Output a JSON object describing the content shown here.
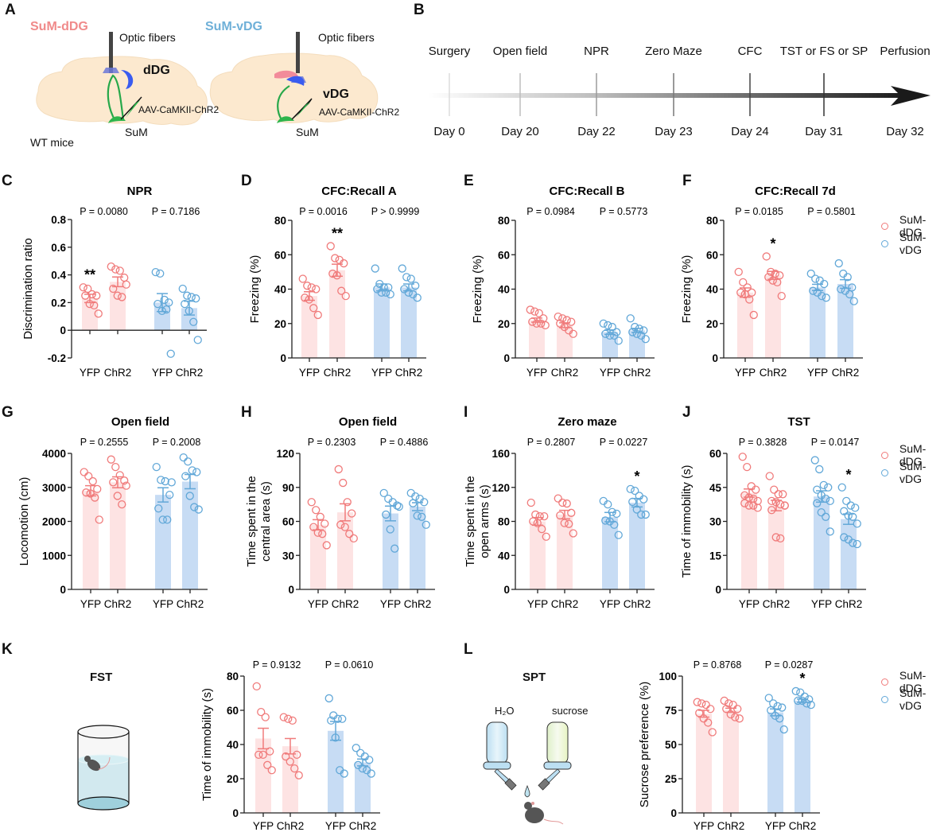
{
  "colors": {
    "dDG_point": "#f07b7b",
    "dDG_bar": "#fde3e3",
    "vDG_point": "#62a8d8",
    "vDG_bar": "#c7dcf4",
    "axis": "#222222",
    "timeline_dark": "#1a1a1a"
  },
  "panel_letters": [
    "A",
    "B",
    "C",
    "D",
    "E",
    "F",
    "G",
    "H",
    "I",
    "J",
    "K",
    "L"
  ],
  "panelA": {
    "group1_label": "SuM-dDG",
    "group2_label": "SuM-vDG",
    "optic1": "Optic fibers",
    "optic2": "Optic fibers",
    "region1": "dDG",
    "region2": "vDG",
    "virus1": "AAV-CaMKII-ChR2",
    "virus2": "AAV-CaMKII-ChR2",
    "sum1": "SuM",
    "sum2": "SuM",
    "mice": "WT mice"
  },
  "panelB": {
    "events": [
      {
        "label": "Surgery",
        "day": "Day 0"
      },
      {
        "label": "Open field",
        "day": "Day 20"
      },
      {
        "label": "NPR",
        "day": "Day 22"
      },
      {
        "label": "Zero Maze",
        "day": "Day 23"
      },
      {
        "label": "CFC",
        "day": "Day 24"
      },
      {
        "label": "TST or FS or SP",
        "day": "Day 31"
      },
      {
        "label": "Perfusion",
        "day": "Day 32"
      }
    ]
  },
  "legend": {
    "items": [
      {
        "label": "SuM-dDG",
        "icon": "open-circle-red"
      },
      {
        "label": "SuM-vDG",
        "icon": "open-circle-blue"
      }
    ]
  },
  "panelK": {
    "title": "FST",
    "illustration": "cylinder-with-swimming-mouse"
  },
  "panelL": {
    "title": "SPT",
    "bottle1": "H₂O",
    "bottle2": "sucrose",
    "illustration": "two-bottles-and-mouse"
  },
  "chart_data": [
    {
      "id": "C",
      "type": "bar",
      "title": "NPR",
      "ylabel": "Discrimination ratio",
      "ylim": [
        -0.2,
        0.8
      ],
      "yticks": [
        -0.2,
        0,
        0.2,
        0.4,
        0.6,
        0.8
      ],
      "ytick_labels": [
        "-0.2",
        "0",
        "0.2",
        "0.4",
        "0.6",
        "0.8"
      ],
      "categories": [
        "YFP",
        "ChR2",
        "YFP",
        "ChR2"
      ],
      "groups": [
        "SuM-dDG",
        "SuM-dDG",
        "SuM-vDG",
        "SuM-vDG"
      ],
      "means": [
        0.23,
        0.35,
        0.2,
        0.16
      ],
      "sems": [
        0.03,
        0.035,
        0.065,
        0.05
      ],
      "points": [
        [
          0.31,
          0.3,
          0.26,
          0.25,
          0.25,
          0.19,
          0.18,
          0.12
        ],
        [
          0.46,
          0.44,
          0.43,
          0.38,
          0.3,
          0.25,
          0.24,
          0.33
        ],
        [
          0.42,
          0.41,
          0.22,
          0.2,
          0.19,
          0.14,
          0.15,
          -0.17
        ],
        [
          0.3,
          0.25,
          0.24,
          0.23,
          0.19,
          0.14,
          0.06,
          -0.07
        ]
      ],
      "pvalues": [
        "P = 0.0080",
        "P = 0.7186"
      ],
      "significance": [
        "**",
        "",
        "",
        ""
      ]
    },
    {
      "id": "D",
      "type": "bar",
      "title": "CFC:Recall A",
      "ylabel": "Freezing (%)",
      "ylim": [
        0,
        80
      ],
      "yticks": [
        0,
        20,
        40,
        60,
        80
      ],
      "ytick_labels": [
        "0",
        "20",
        "40",
        "60",
        "80"
      ],
      "categories": [
        "YFP",
        "ChR2",
        "YFP",
        "ChR2"
      ],
      "groups": [
        "SuM-dDG",
        "SuM-dDG",
        "SuM-vDG",
        "SuM-vDG"
      ],
      "means": [
        36,
        51,
        41,
        41
      ],
      "sems": [
        2.5,
        3.5,
        2,
        2
      ],
      "points": [
        [
          46,
          42,
          41,
          40,
          35,
          34,
          29,
          25
        ],
        [
          65,
          58,
          57,
          55,
          49,
          48,
          39,
          36
        ],
        [
          52,
          43,
          41,
          41,
          40,
          38,
          38,
          37
        ],
        [
          52,
          47,
          46,
          42,
          40,
          38,
          37,
          35
        ]
      ],
      "pvalues": [
        "P = 0.0016",
        "P > 0.9999"
      ],
      "significance": [
        "",
        "**",
        "",
        ""
      ]
    },
    {
      "id": "E",
      "type": "bar",
      "title": "CFC:Recall B",
      "ylabel": "Freezing (%)",
      "ylim": [
        0,
        80
      ],
      "yticks": [
        0,
        20,
        40,
        60,
        80
      ],
      "ytick_labels": [
        "0",
        "20",
        "40",
        "60",
        "80"
      ],
      "categories": [
        "YFP",
        "ChR2",
        "YFP",
        "ChR2"
      ],
      "groups": [
        "SuM-dDG",
        "SuM-dDG",
        "SuM-vDG",
        "SuM-vDG"
      ],
      "means": [
        22,
        19,
        15,
        16
      ],
      "sems": [
        1.2,
        1.4,
        1.3,
        1.2
      ],
      "points": [
        [
          28,
          27,
          26,
          23,
          21,
          20,
          20,
          19
        ],
        [
          24,
          23,
          22,
          21,
          20,
          18,
          16,
          14
        ],
        [
          20,
          19,
          18,
          15,
          14,
          13,
          13,
          10
        ],
        [
          23,
          18,
          17,
          16,
          15,
          14,
          13,
          11
        ]
      ],
      "pvalues": [
        "P = 0.0984",
        "P = 0.5773"
      ],
      "significance": [
        "",
        "",
        "",
        ""
      ]
    },
    {
      "id": "F",
      "type": "bar",
      "title": "CFC:Recall 7d",
      "ylabel": "Freezing (%)",
      "ylim": [
        0,
        80
      ],
      "yticks": [
        0,
        20,
        40,
        60,
        80
      ],
      "ytick_labels": [
        "0",
        "20",
        "40",
        "60",
        "80"
      ],
      "categories": [
        "YFP",
        "ChR2",
        "YFP",
        "ChR2"
      ],
      "groups": [
        "SuM-dDG",
        "SuM-dDG",
        "SuM-vDG",
        "SuM-vDG"
      ],
      "means": [
        38,
        48,
        41,
        43
      ],
      "sems": [
        2.7,
        2.3,
        1.8,
        2.5
      ],
      "points": [
        [
          50,
          44,
          41,
          38,
          38,
          37,
          34,
          25
        ],
        [
          59,
          50,
          49,
          48,
          47,
          45,
          44,
          36
        ],
        [
          49,
          46,
          45,
          43,
          39,
          38,
          36,
          35
        ],
        [
          55,
          49,
          47,
          41,
          40,
          39,
          37,
          33
        ]
      ],
      "pvalues": [
        "P = 0.0185",
        "P = 0.5801"
      ],
      "significance": [
        "",
        "*",
        "",
        ""
      ]
    },
    {
      "id": "G",
      "type": "bar",
      "title": "Open field",
      "ylabel": "Locomotion (cm)",
      "ylim": [
        0,
        4000
      ],
      "yticks": [
        0,
        1000,
        2000,
        3000,
        4000
      ],
      "ytick_labels": [
        "0",
        "1000",
        "2000",
        "3000",
        "4000"
      ],
      "categories": [
        "YFP",
        "ChR2",
        "YFP",
        "ChR2"
      ],
      "groups": [
        "SuM-dDG",
        "SuM-dDG",
        "SuM-vDG",
        "SuM-vDG"
      ],
      "means": [
        2900,
        3150,
        2780,
        3170
      ],
      "sems": [
        150,
        160,
        210,
        210
      ],
      "points": [
        [
          3450,
          3330,
          3180,
          2950,
          2850,
          2820,
          2700,
          2050
        ],
        [
          3820,
          3600,
          3360,
          3200,
          3150,
          2750,
          2500,
          3050
        ],
        [
          3600,
          3220,
          3180,
          2780,
          2380,
          2050,
          2050,
          3150
        ],
        [
          3880,
          3760,
          3500,
          3450,
          3330,
          2750,
          2420,
          2350
        ]
      ],
      "pvalues": [
        "P = 0.2555",
        "P = 0.2008"
      ],
      "significance": [
        "",
        "",
        "",
        ""
      ]
    },
    {
      "id": "H",
      "type": "bar",
      "title": "Open field",
      "ylabel": "Time spent in the central area (s)",
      "ylim": [
        0,
        120
      ],
      "yticks": [
        0,
        30,
        60,
        90,
        120
      ],
      "ytick_labels": [
        "0",
        "30",
        "60",
        "90",
        "120"
      ],
      "categories": [
        "YFP",
        "ChR2",
        "YFP",
        "ChR2"
      ],
      "groups": [
        "SuM-dDG",
        "SuM-dDG",
        "SuM-vDG",
        "SuM-vDG"
      ],
      "means": [
        57,
        68,
        67,
        73
      ],
      "sems": [
        4.5,
        7.5,
        6.5,
        3.5
      ],
      "points": [
        [
          77,
          70,
          64,
          58,
          55,
          50,
          49,
          39
        ],
        [
          106,
          94,
          77,
          67,
          57,
          55,
          49,
          45
        ],
        [
          85,
          80,
          77,
          74,
          66,
          53,
          36,
          73
        ],
        [
          85,
          82,
          80,
          77,
          76,
          65,
          64,
          57
        ]
      ],
      "pvalues": [
        "P = 0.2303",
        "P = 0.4886"
      ],
      "significance": [
        "",
        "",
        "",
        ""
      ]
    },
    {
      "id": "I",
      "type": "bar",
      "title": "Zero maze",
      "ylabel": "Time spent in the open arms (s)",
      "ylim": [
        0,
        160
      ],
      "yticks": [
        0,
        40,
        80,
        120,
        160
      ],
      "ytick_labels": [
        "0",
        "40",
        "80",
        "120",
        "160"
      ],
      "categories": [
        "YFP",
        "ChR2",
        "YFP",
        "ChR2"
      ],
      "groups": [
        "SuM-dDG",
        "SuM-dDG",
        "SuM-vDG",
        "SuM-vDG"
      ],
      "means": [
        80,
        88,
        85,
        102
      ],
      "sems": [
        4.5,
        5,
        5.5,
        5
      ],
      "points": [
        [
          102,
          88,
          86,
          86,
          80,
          78,
          71,
          62
        ],
        [
          107,
          102,
          101,
          90,
          87,
          78,
          77,
          66
        ],
        [
          104,
          100,
          91,
          89,
          81,
          80,
          76,
          64
        ],
        [
          118,
          116,
          110,
          106,
          103,
          94,
          88,
          88
        ]
      ],
      "pvalues": [
        "P = 0.2807",
        "P = 0.0227"
      ],
      "significance": [
        "",
        "",
        "",
        "*"
      ]
    },
    {
      "id": "J",
      "type": "bar",
      "title": "TST",
      "ylabel": "Time of immobility (s)",
      "ylim": [
        0,
        60
      ],
      "yticks": [
        0,
        15,
        30,
        45,
        60
      ],
      "ytick_labels": [
        "0",
        "15",
        "30",
        "45",
        "60"
      ],
      "categories": [
        "YFP",
        "ChR2",
        "YFP",
        "ChR2"
      ],
      "groups": [
        "SuM-dDG",
        "SuM-dDG",
        "SuM-vDG",
        "SuM-vDG"
      ],
      "means": [
        42.5,
        37,
        41,
        31
      ],
      "sems": [
        1.8,
        2.3,
        2.5,
        2.3
      ],
      "points": [
        [
          58.5,
          54,
          45.5,
          44,
          41.5,
          40.5,
          40,
          39,
          38,
          37,
          37,
          36
        ],
        [
          50,
          44,
          42,
          42,
          39,
          38.5,
          37.5,
          37,
          35,
          23,
          22.5,
          37
        ],
        [
          57,
          53,
          46,
          45,
          44,
          41.5,
          40,
          39,
          38,
          34,
          32,
          25.5
        ],
        [
          45,
          39,
          37,
          36,
          34.5,
          32.5,
          32,
          29,
          23,
          22,
          20.5,
          20
        ]
      ],
      "pvalues": [
        "P = 0.3828",
        "P = 0.0147"
      ],
      "significance": [
        "",
        "",
        "",
        "*"
      ]
    },
    {
      "id": "K",
      "type": "bar",
      "title": "",
      "ylabel": "Time of immobility (s)",
      "ylim": [
        0,
        80
      ],
      "yticks": [
        0,
        20,
        40,
        60,
        80
      ],
      "ytick_labels": [
        "0",
        "20",
        "40",
        "60",
        "80"
      ],
      "categories": [
        "YFP",
        "ChR2",
        "YFP",
        "ChR2"
      ],
      "groups": [
        "SuM-dDG",
        "SuM-dDG",
        "SuM-vDG",
        "SuM-vDG"
      ],
      "means": [
        43.5,
        39,
        48,
        29.5
      ],
      "sems": [
        6,
        4.5,
        5.5,
        2
      ],
      "points": [
        [
          74,
          59,
          56,
          36,
          34,
          34,
          28,
          25
        ],
        [
          56,
          55,
          54,
          34,
          33,
          30,
          26,
          22
        ],
        [
          67,
          57,
          55,
          55,
          54,
          44,
          25,
          23
        ],
        [
          38,
          35,
          33,
          31,
          28,
          26,
          25,
          23
        ]
      ],
      "pvalues": [
        "P = 0.9132",
        "P = 0.0610"
      ],
      "significance": [
        "",
        "",
        "",
        ""
      ]
    },
    {
      "id": "L",
      "type": "bar",
      "title": "",
      "ylabel": "Sucrose preference (%)",
      "ylim": [
        0,
        100
      ],
      "yticks": [
        0,
        25,
        50,
        75,
        100
      ],
      "ytick_labels": [
        "0",
        "25",
        "50",
        "75",
        "100"
      ],
      "categories": [
        "YFP",
        "ChR2",
        "YFP",
        "ChR2"
      ],
      "groups": [
        "SuM-dDG",
        "SuM-dDG",
        "SuM-vDG",
        "SuM-vDG"
      ],
      "means": [
        72.5,
        75,
        73.5,
        82
      ],
      "sems": [
        2.5,
        1.5,
        2.5,
        1.2
      ],
      "points": [
        [
          81,
          80,
          79,
          76,
          73,
          69,
          66,
          59
        ],
        [
          82,
          80,
          79,
          76,
          76,
          72,
          70,
          69
        ],
        [
          84,
          80,
          78,
          77,
          75,
          71,
          69,
          61
        ],
        [
          89,
          88,
          85,
          83,
          82,
          82,
          80,
          79
        ]
      ],
      "pvalues": [
        "P = 0.8768",
        "P = 0.0287"
      ],
      "significance": [
        "",
        "",
        "",
        "*"
      ]
    }
  ]
}
